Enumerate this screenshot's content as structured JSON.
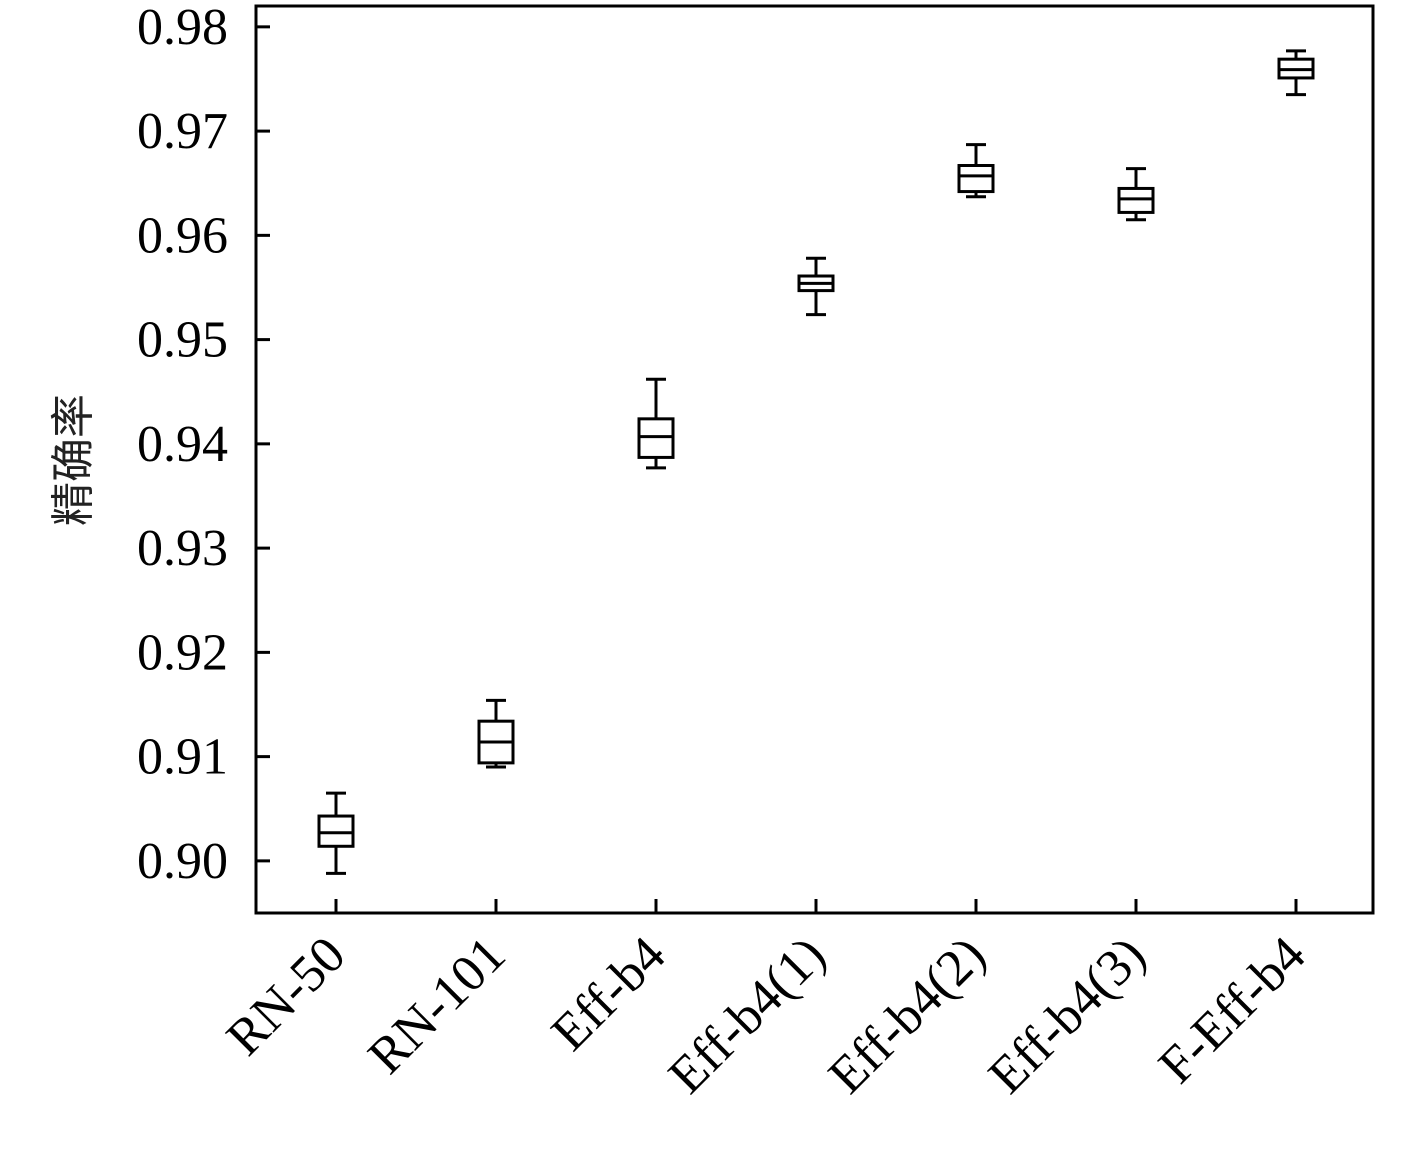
{
  "chart_data": {
    "type": "box",
    "title": "",
    "xlabel": "",
    "ylabel": "精确率",
    "ylim": [
      0.895,
      0.982
    ],
    "yticks": [
      "0.90",
      "0.91",
      "0.92",
      "0.93",
      "0.94",
      "0.95",
      "0.96",
      "0.97",
      "0.98"
    ],
    "categories": [
      "RN-50",
      "RN-101",
      "Eff-b4",
      "Eff-b4(1)",
      "Eff-b4(2)",
      "Eff-b4(3)",
      "F-Eff-b4"
    ],
    "boxes": [
      {
        "min": 0.8988,
        "q1": 0.9014,
        "median": 0.9027,
        "q3": 0.9043,
        "max": 0.9065
      },
      {
        "min": 0.909,
        "q1": 0.9094,
        "median": 0.9114,
        "q3": 0.9134,
        "max": 0.9154
      },
      {
        "min": 0.9377,
        "q1": 0.9387,
        "median": 0.9407,
        "q3": 0.9424,
        "max": 0.9462
      },
      {
        "min": 0.9524,
        "q1": 0.9547,
        "median": 0.9554,
        "q3": 0.9561,
        "max": 0.9578
      },
      {
        "min": 0.9637,
        "q1": 0.9642,
        "median": 0.9657,
        "q3": 0.9667,
        "max": 0.9687
      },
      {
        "min": 0.9615,
        "q1": 0.9622,
        "median": 0.9635,
        "q3": 0.9645,
        "max": 0.9664
      },
      {
        "min": 0.9735,
        "q1": 0.9751,
        "median": 0.9759,
        "q3": 0.9769,
        "max": 0.9777
      }
    ],
    "grid": false,
    "legend": "none"
  }
}
